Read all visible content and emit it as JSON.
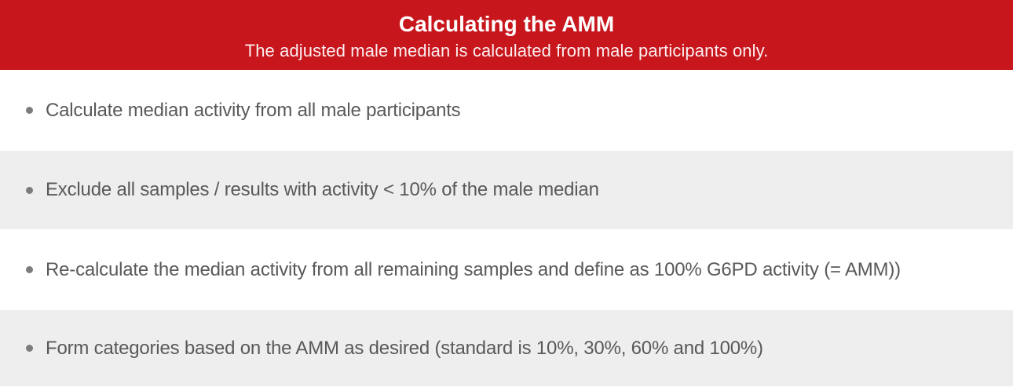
{
  "header": {
    "title": "Calculating the AMM",
    "subtitle": "The adjusted male median is calculated from male participants only."
  },
  "steps": [
    {
      "text": "Calculate median activity from all male participants"
    },
    {
      "text": "Exclude all samples / results with activity < 10% of the male median"
    },
    {
      "text": "Re-calculate the median activity from all remaining samples and define as 100% G6PD activity (= AMM))"
    },
    {
      "text": "Form categories based on the AMM as desired (standard is 10%, 30%, 60% and 100%)"
    }
  ],
  "colors": {
    "accent_red": "#C8161D",
    "row_alt_gray": "#EEEEEE",
    "step_text_gray": "#58595B",
    "bullet_gray": "#7C7C7C",
    "header_text": "#FFFFFF"
  }
}
